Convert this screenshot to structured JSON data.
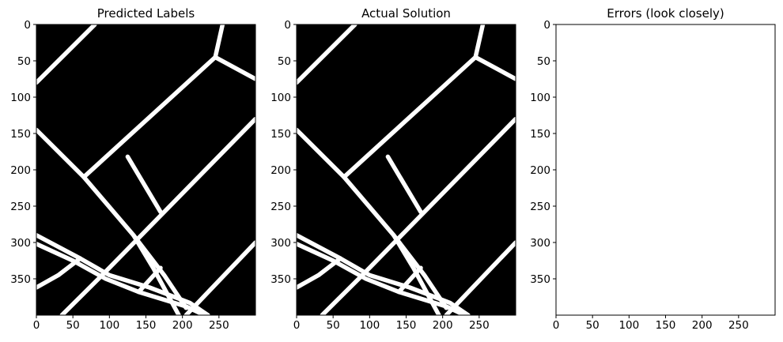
{
  "chart_data": [
    {
      "type": "heatmap",
      "title": "Predicted Labels",
      "image": "binary road segmentation mask (white roads on black)",
      "colors": {
        "background": "#000000",
        "foreground": "#ffffff"
      },
      "x_ticks": [
        0,
        50,
        100,
        150,
        200,
        250
      ],
      "y_ticks": [
        0,
        50,
        100,
        150,
        200,
        250,
        300,
        350
      ],
      "xlim": [
        0,
        300
      ],
      "ylim": [
        400,
        0
      ],
      "roads": [
        [
          [
            0,
            80
          ],
          [
            80,
            0
          ]
        ],
        [
          [
            0,
            145
          ],
          [
            65,
            210
          ],
          [
            133,
            290
          ],
          [
            175,
            345
          ],
          [
            205,
            390
          ]
        ],
        [
          [
            65,
            210
          ],
          [
            245,
            45
          ],
          [
            255,
            0
          ]
        ],
        [
          [
            245,
            45
          ],
          [
            300,
            75
          ]
        ],
        [
          [
            125,
            182
          ],
          [
            170,
            258
          ]
        ],
        [
          [
            90,
            345
          ],
          [
            300,
            130
          ]
        ],
        [
          [
            0,
            290
          ],
          [
            60,
            322
          ],
          [
            100,
            345
          ],
          [
            155,
            362
          ],
          [
            210,
            383
          ],
          [
            235,
            400
          ]
        ],
        [
          [
            0,
            302
          ],
          [
            50,
            325
          ],
          [
            95,
            350
          ],
          [
            140,
            368
          ],
          [
            205,
            388
          ],
          [
            230,
            400
          ]
        ],
        [
          [
            0,
            362
          ],
          [
            30,
            345
          ],
          [
            60,
            322
          ]
        ],
        [
          [
            35,
            400
          ],
          [
            90,
            345
          ]
        ],
        [
          [
            133,
            290
          ],
          [
            160,
            335
          ],
          [
            195,
            400
          ]
        ],
        [
          [
            140,
            368
          ],
          [
            170,
            335
          ]
        ],
        [
          [
            205,
            400
          ],
          [
            300,
            300
          ]
        ]
      ]
    },
    {
      "type": "heatmap",
      "title": "Actual Solution",
      "image": "binary road segmentation mask (white roads on black)",
      "colors": {
        "background": "#000000",
        "foreground": "#ffffff"
      },
      "x_ticks": [
        0,
        50,
        100,
        150,
        200,
        250
      ],
      "y_ticks": [
        0,
        50,
        100,
        150,
        200,
        250,
        300,
        350
      ],
      "xlim": [
        0,
        300
      ],
      "ylim": [
        400,
        0
      ],
      "roads": [
        [
          [
            0,
            80
          ],
          [
            80,
            0
          ]
        ],
        [
          [
            0,
            145
          ],
          [
            65,
            210
          ],
          [
            133,
            290
          ],
          [
            175,
            345
          ],
          [
            205,
            390
          ]
        ],
        [
          [
            65,
            210
          ],
          [
            245,
            45
          ],
          [
            255,
            0
          ]
        ],
        [
          [
            245,
            45
          ],
          [
            300,
            75
          ]
        ],
        [
          [
            125,
            182
          ],
          [
            170,
            258
          ]
        ],
        [
          [
            90,
            345
          ],
          [
            300,
            130
          ]
        ],
        [
          [
            0,
            290
          ],
          [
            60,
            322
          ],
          [
            100,
            345
          ],
          [
            155,
            362
          ],
          [
            210,
            383
          ],
          [
            235,
            400
          ]
        ],
        [
          [
            0,
            302
          ],
          [
            50,
            325
          ],
          [
            95,
            350
          ],
          [
            140,
            368
          ],
          [
            205,
            388
          ],
          [
            230,
            400
          ]
        ],
        [
          [
            0,
            362
          ],
          [
            30,
            345
          ],
          [
            60,
            322
          ]
        ],
        [
          [
            35,
            400
          ],
          [
            90,
            345
          ]
        ],
        [
          [
            133,
            290
          ],
          [
            160,
            335
          ],
          [
            195,
            400
          ]
        ],
        [
          [
            140,
            368
          ],
          [
            170,
            335
          ]
        ],
        [
          [
            205,
            400
          ],
          [
            300,
            300
          ]
        ]
      ]
    },
    {
      "type": "heatmap",
      "title": "Errors (look closely)",
      "image": "error map (blank / all white)",
      "colors": {
        "background": "#ffffff"
      },
      "x_ticks": [
        0,
        50,
        100,
        150,
        200,
        250
      ],
      "y_ticks": [
        0,
        50,
        100,
        150,
        200,
        250,
        300,
        350
      ],
      "xlim": [
        0,
        300
      ],
      "ylim": [
        400,
        0
      ],
      "roads": []
    }
  ]
}
